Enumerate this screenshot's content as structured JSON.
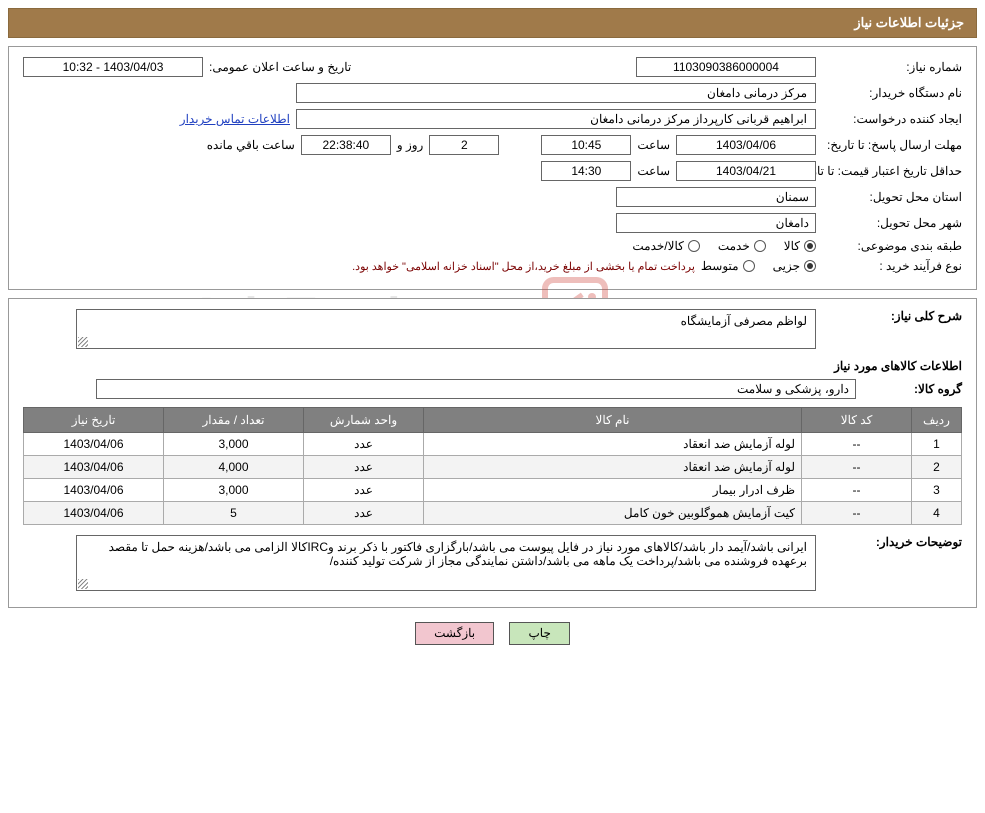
{
  "header": {
    "title": "جزئیات اطلاعات نیاز"
  },
  "section1": {
    "need_no_label": "شماره نیاز:",
    "need_no": "1103090386000004",
    "announce_label": "تاریخ و ساعت اعلان عمومی:",
    "announce_value": "1403/04/03 - 10:32",
    "buyer_org_label": "نام دستگاه خریدار:",
    "buyer_org": "مرکز درمانی دامغان",
    "requester_label": "ایجاد کننده درخواست:",
    "requester": "ابراهیم قربانی کارپرداز مرکز درمانی دامغان",
    "contact_link": "اطلاعات تماس خریدار",
    "deadline_label": "مهلت ارسال پاسخ: تا تاریخ:",
    "deadline_date": "1403/04/06",
    "time_label": "ساعت",
    "deadline_time": "10:45",
    "remaining_days": "2",
    "days_and": "روز و",
    "remaining_hms": "22:38:40",
    "remaining_suffix": "ساعت باقي مانده",
    "validity_label": "حداقل تاریخ اعتبار قیمت: تا تاریخ:",
    "validity_date": "1403/04/21",
    "validity_time": "14:30",
    "province_label": "استان محل تحویل:",
    "province": "سمنان",
    "city_label": "شهر محل تحویل:",
    "city": "دامغان",
    "class_label": "طبقه بندی موضوعی:",
    "class_opts": [
      "کالا",
      "خدمت",
      "کالا/خدمت"
    ],
    "class_selected": 0,
    "process_label": "نوع فرآیند خرید :",
    "process_opts": [
      "جزیی",
      "متوسط"
    ],
    "process_selected": 0,
    "process_note": "پرداخت تمام یا بخشی از مبلغ خرید،از محل \"اسناد خزانه اسلامی\" خواهد بود."
  },
  "section2": {
    "desc_label": "شرح کلی نیاز:",
    "desc_value": "لواظم مصرفی آزمایشگاه",
    "goods_heading": "اطلاعات کالاهای مورد نیاز",
    "group_label": "گروه کالا:",
    "group_value": "دارو، پزشکی و سلامت",
    "table": {
      "headers": [
        "ردیف",
        "کد کالا",
        "نام کالا",
        "واحد شمارش",
        "تعداد / مقدار",
        "تاریخ نیاز"
      ],
      "rows": [
        [
          "1",
          "--",
          "لوله آزمایش ضد انعقاد",
          "عدد",
          "3,000",
          "1403/04/06"
        ],
        [
          "2",
          "--",
          "لوله آزمایش ضد انعقاد",
          "عدد",
          "4,000",
          "1403/04/06"
        ],
        [
          "3",
          "--",
          "ظرف ادرار بیمار",
          "عدد",
          "3,000",
          "1403/04/06"
        ],
        [
          "4",
          "--",
          "کیت آزمایش هموگلوبین خون کامل",
          "عدد",
          "5",
          "1403/04/06"
        ]
      ],
      "col_widths": [
        "50px",
        "110px",
        "auto",
        "120px",
        "140px",
        "140px"
      ]
    },
    "buyer_notes_label": "توضیحات خریدار:",
    "buyer_notes": "ایرانی باشد/آیمد دار باشد/کالاهای مورد نیاز در فایل پیوست می باشد/بارگزاری فاکتور با ذکر برند  وIRCکالا الزامی می باشد/هزینه حمل تا مقصد برعهده فروشنده می باشد/پرداخت یک ماهه می باشد/داشتن نمایندگی  مجاز از شرکت تولید کننده/"
  },
  "buttons": {
    "print": "چاپ",
    "back": "بازگشت"
  },
  "watermark": "AriaTender.net",
  "colors": {
    "header_bg": "#a07a4a",
    "table_header_bg": "#808080",
    "btn_print_bg": "#c8e6bb",
    "btn_back_bg": "#f2c6cf",
    "link_color": "#2040c0",
    "note_color": "#7a0000"
  }
}
